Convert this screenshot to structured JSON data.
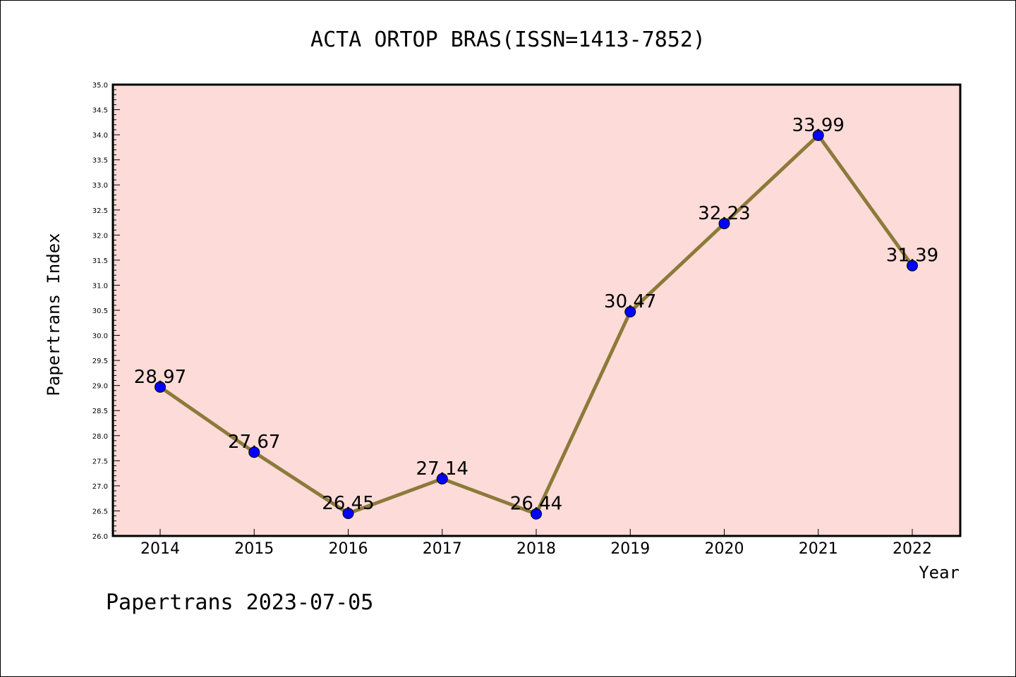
{
  "chart_data": {
    "type": "line",
    "title": "ACTA ORTOP BRAS(ISSN=1413-7852)",
    "xlabel": "Year",
    "ylabel": "Papertrans Index",
    "categories": [
      "2014",
      "2015",
      "2016",
      "2017",
      "2018",
      "2019",
      "2020",
      "2021",
      "2022"
    ],
    "series": [
      {
        "values": [
          28.97,
          27.67,
          26.45,
          27.14,
          26.44,
          30.47,
          32.23,
          33.99,
          31.39
        ],
        "data_labels": [
          "28.97",
          "27.67",
          "26.45",
          "27.14",
          "26.44",
          "30.47",
          "32.23",
          "33.99",
          "31.39"
        ]
      }
    ],
    "ylim": [
      26.0,
      35.0
    ],
    "yticks": [
      "26.0",
      "26.5",
      "27.0",
      "27.5",
      "28.0",
      "28.5",
      "29.0",
      "29.5",
      "30.0",
      "30.5",
      "31.0",
      "31.5",
      "32.0",
      "32.5",
      "33.0",
      "33.5",
      "34.0",
      "34.5",
      "35.0"
    ],
    "grid": false,
    "colors": {
      "plot_background": "#fddbd8",
      "line": "#8c7a3a",
      "marker": "#0000ff",
      "axis": "#000000"
    }
  },
  "footer": "Papertrans 2023-07-05"
}
